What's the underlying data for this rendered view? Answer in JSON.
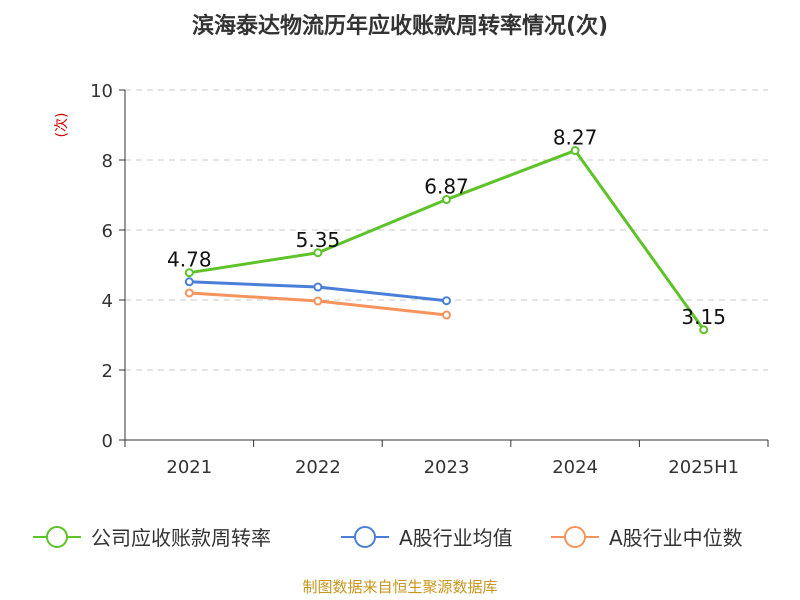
{
  "source_note": "制图数据来自恒生聚源数据库",
  "chart_data": {
    "type": "line",
    "title": "滨海泰达物流历年应收账款周转率情况(次)",
    "ylabel": "(次)",
    "xlabel": "",
    "categories": [
      "2021",
      "2022",
      "2023",
      "2024",
      "2025H1"
    ],
    "ylim": [
      0,
      10
    ],
    "yticks": [
      0,
      2,
      4,
      6,
      8,
      10
    ],
    "grid": true,
    "legend_position": "bottom",
    "series": [
      {
        "name": "公司应收账款周转率",
        "color": "#5ec229",
        "values": [
          4.78,
          5.35,
          6.87,
          8.27,
          3.15
        ],
        "labels": [
          "4.78",
          "5.35",
          "6.87",
          "8.27",
          "3.15"
        ]
      },
      {
        "name": "A股行业均值",
        "color": "#4a7fd9",
        "values": [
          4.52,
          4.37,
          3.98,
          null,
          null
        ],
        "labels": []
      },
      {
        "name": "A股行业中位数",
        "color": "#f5945c",
        "values": [
          4.2,
          3.97,
          3.57,
          null,
          null
        ],
        "labels": []
      }
    ]
  }
}
